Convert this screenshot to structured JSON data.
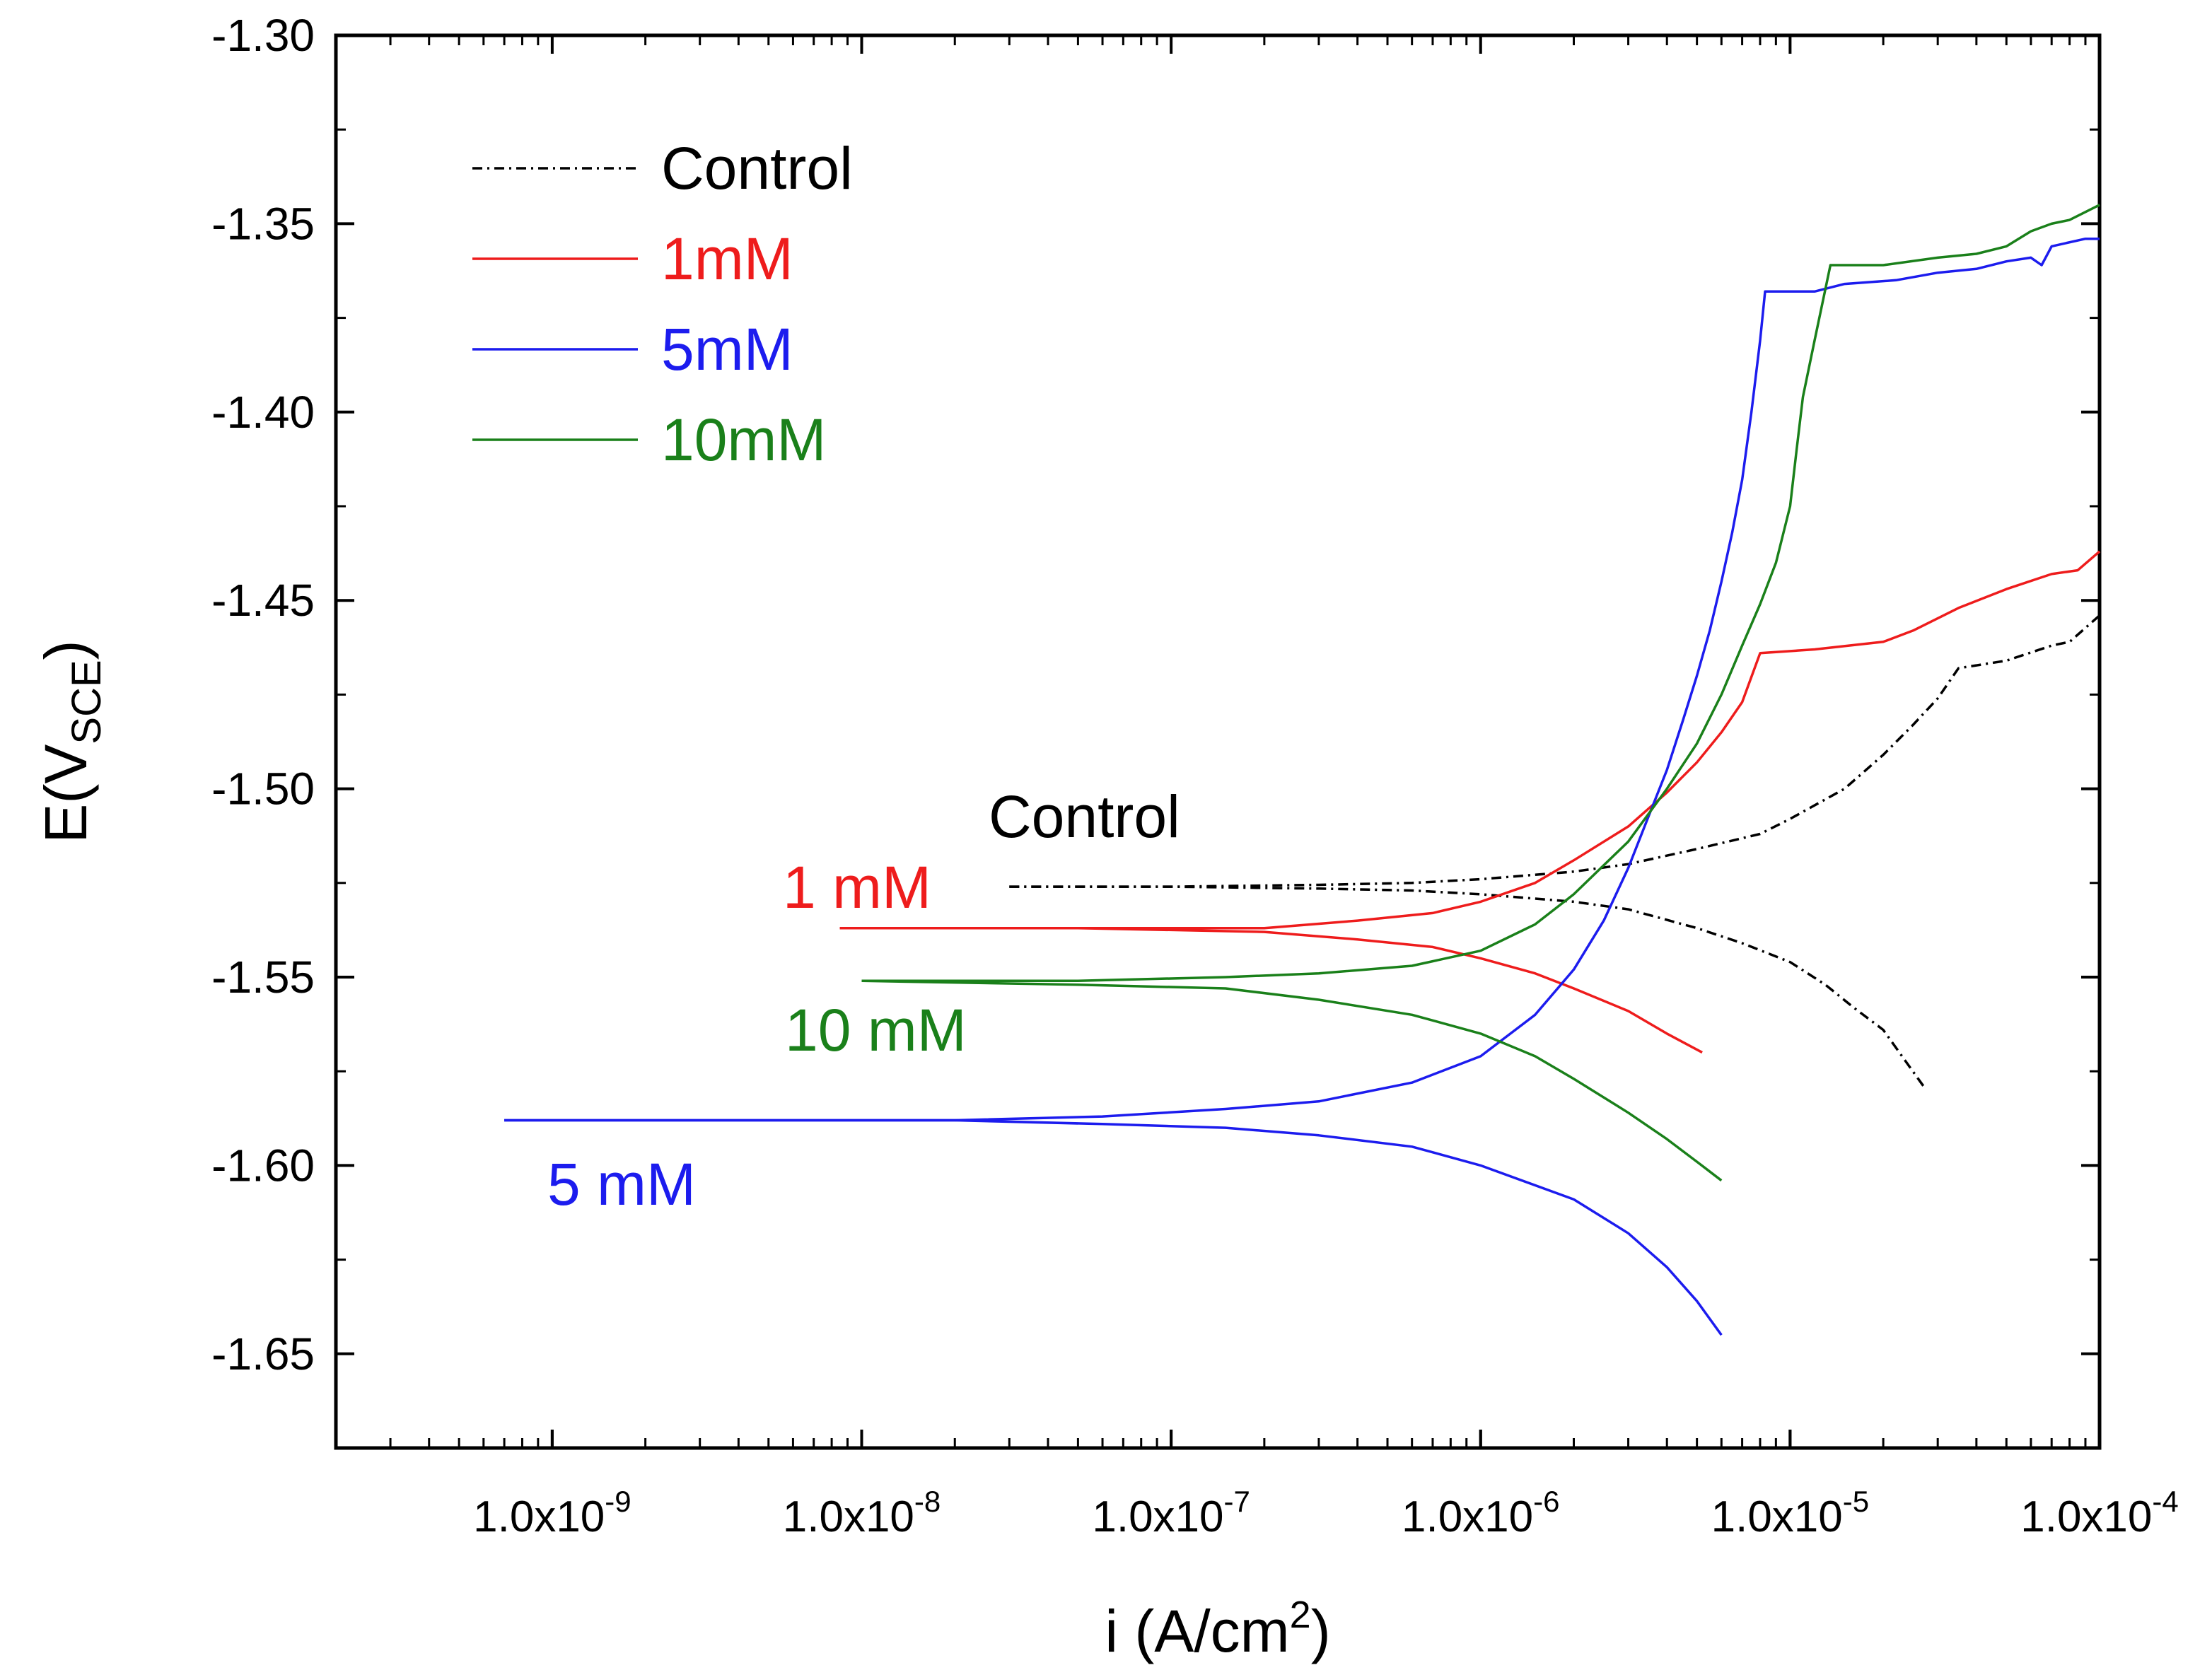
{
  "chart_data": {
    "type": "line",
    "title": "",
    "xlabel": {
      "main": "i (A/cm",
      "sup": "2",
      "close": ")"
    },
    "ylabel": {
      "main": "E(V",
      "sub": "SCE",
      "close": ")"
    },
    "xscale": "log",
    "xlim": [
      2e-10,
      0.0001
    ],
    "ylim": [
      -1.675,
      -1.3
    ],
    "x_tick_labels": [
      {
        "value": 1e-09,
        "base": "1.0x10",
        "exp": "-9"
      },
      {
        "value": 1e-08,
        "base": "1.0x10",
        "exp": "-8"
      },
      {
        "value": 1e-07,
        "base": "1.0x10",
        "exp": "-7"
      },
      {
        "value": 1e-06,
        "base": "1.0x10",
        "exp": "-6"
      },
      {
        "value": 1e-05,
        "base": "1.0x10",
        "exp": "-5"
      },
      {
        "value": 0.0001,
        "base": "1.0x10",
        "exp": "-4"
      }
    ],
    "y_ticks": [
      -1.3,
      -1.35,
      -1.4,
      -1.45,
      -1.5,
      -1.55,
      -1.6,
      -1.65
    ],
    "y_tick_labels": [
      "-1.30",
      "-1.35",
      "-1.40",
      "-1.45",
      "-1.50",
      "-1.55",
      "-1.60",
      "-1.65"
    ],
    "grid": false,
    "legend_position": "top-left",
    "series": [
      {
        "name": "Control",
        "color": "#000000",
        "style": "dash-dot",
        "annotation": "Control",
        "anodic": [
          [
            3e-08,
            -1.526
          ],
          [
            1e-07,
            -1.526
          ],
          [
            3e-07,
            -1.5255
          ],
          [
            6e-07,
            -1.525
          ],
          [
            1e-06,
            -1.524
          ],
          [
            2e-06,
            -1.522
          ],
          [
            3e-06,
            -1.52
          ],
          [
            5e-06,
            -1.516
          ],
          [
            8e-06,
            -1.512
          ],
          [
            1e-05,
            -1.508
          ],
          [
            1.5e-05,
            -1.5
          ],
          [
            2e-05,
            -1.491
          ],
          [
            2.5e-05,
            -1.483
          ],
          [
            3e-05,
            -1.476
          ],
          [
            3.5e-05,
            -1.468
          ],
          [
            5e-05,
            -1.466
          ],
          [
            7e-05,
            -1.462
          ],
          [
            8e-05,
            -1.461
          ],
          [
            0.0001,
            -1.454
          ]
        ],
        "cathodic": [
          [
            3e-08,
            -1.526
          ],
          [
            1e-07,
            -1.526
          ],
          [
            3e-07,
            -1.5265
          ],
          [
            6e-07,
            -1.527
          ],
          [
            1e-06,
            -1.528
          ],
          [
            2e-06,
            -1.53
          ],
          [
            3e-06,
            -1.532
          ],
          [
            5e-06,
            -1.537
          ],
          [
            7e-06,
            -1.541
          ],
          [
            1e-05,
            -1.546
          ],
          [
            1.3e-05,
            -1.552
          ],
          [
            1.6e-05,
            -1.558
          ],
          [
            2e-05,
            -1.564
          ],
          [
            2.3e-05,
            -1.571
          ],
          [
            2.7e-05,
            -1.579
          ]
        ]
      },
      {
        "name": "1mM",
        "color": "#ee1c1c",
        "style": "solid",
        "annotation": "1 mM",
        "anodic": [
          [
            8.5e-09,
            -1.537
          ],
          [
            5e-08,
            -1.537
          ],
          [
            2e-07,
            -1.537
          ],
          [
            4e-07,
            -1.535
          ],
          [
            7e-07,
            -1.533
          ],
          [
            1e-06,
            -1.53
          ],
          [
            1.5e-06,
            -1.525
          ],
          [
            2e-06,
            -1.519
          ],
          [
            3e-06,
            -1.51
          ],
          [
            4e-06,
            -1.501
          ],
          [
            5e-06,
            -1.493
          ],
          [
            6e-06,
            -1.485
          ],
          [
            7e-06,
            -1.477
          ],
          [
            8e-06,
            -1.464
          ],
          [
            1.2e-05,
            -1.463
          ],
          [
            2e-05,
            -1.461
          ],
          [
            2.5e-05,
            -1.458
          ],
          [
            3.5e-05,
            -1.452
          ],
          [
            5e-05,
            -1.447
          ],
          [
            7e-05,
            -1.443
          ],
          [
            8.5e-05,
            -1.442
          ],
          [
            0.0001,
            -1.437
          ]
        ],
        "cathodic": [
          [
            8.5e-09,
            -1.537
          ],
          [
            5e-08,
            -1.537
          ],
          [
            2e-07,
            -1.538
          ],
          [
            4e-07,
            -1.54
          ],
          [
            7e-07,
            -1.542
          ],
          [
            1e-06,
            -1.545
          ],
          [
            1.5e-06,
            -1.549
          ],
          [
            2e-06,
            -1.553
          ],
          [
            3e-06,
            -1.559
          ],
          [
            4e-06,
            -1.565
          ],
          [
            5.2e-06,
            -1.57
          ]
        ]
      },
      {
        "name": "5mM",
        "color": "#1c1cee",
        "style": "solid",
        "annotation": "5 mM",
        "anodic": [
          [
            7e-10,
            -1.588
          ],
          [
            2e-08,
            -1.588
          ],
          [
            6e-08,
            -1.587
          ],
          [
            1.5e-07,
            -1.585
          ],
          [
            3e-07,
            -1.583
          ],
          [
            6e-07,
            -1.578
          ],
          [
            1e-06,
            -1.571
          ],
          [
            1.5e-06,
            -1.56
          ],
          [
            2e-06,
            -1.548
          ],
          [
            2.5e-06,
            -1.535
          ],
          [
            3e-06,
            -1.521
          ],
          [
            3.5e-06,
            -1.507
          ],
          [
            4e-06,
            -1.495
          ],
          [
            4.5e-06,
            -1.482
          ],
          [
            5e-06,
            -1.47
          ],
          [
            5.5e-06,
            -1.458
          ],
          [
            6e-06,
            -1.445
          ],
          [
            6.5e-06,
            -1.432
          ],
          [
            7e-06,
            -1.418
          ],
          [
            7.5e-06,
            -1.4
          ],
          [
            8e-06,
            -1.381
          ],
          [
            8.3e-06,
            -1.368
          ],
          [
            1.2e-05,
            -1.368
          ],
          [
            1.5e-05,
            -1.366
          ],
          [
            2.2e-05,
            -1.365
          ],
          [
            3e-05,
            -1.363
          ],
          [
            4e-05,
            -1.362
          ],
          [
            5e-05,
            -1.36
          ],
          [
            6e-05,
            -1.359
          ],
          [
            6.5e-05,
            -1.361
          ],
          [
            7e-05,
            -1.356
          ],
          [
            9e-05,
            -1.354
          ],
          [
            0.0001,
            -1.354
          ]
        ],
        "cathodic": [
          [
            7e-10,
            -1.588
          ],
          [
            2e-08,
            -1.588
          ],
          [
            6e-08,
            -1.589
          ],
          [
            1.5e-07,
            -1.59
          ],
          [
            3e-07,
            -1.592
          ],
          [
            6e-07,
            -1.595
          ],
          [
            1e-06,
            -1.6
          ],
          [
            2e-06,
            -1.609
          ],
          [
            3e-06,
            -1.618
          ],
          [
            4e-06,
            -1.627
          ],
          [
            5e-06,
            -1.636
          ],
          [
            6e-06,
            -1.645
          ]
        ]
      },
      {
        "name": "10mM",
        "color": "#1a801a",
        "style": "solid",
        "annotation": "10 mM",
        "anodic": [
          [
            1e-08,
            -1.551
          ],
          [
            5e-08,
            -1.551
          ],
          [
            1.5e-07,
            -1.55
          ],
          [
            3e-07,
            -1.549
          ],
          [
            6e-07,
            -1.547
          ],
          [
            1e-06,
            -1.543
          ],
          [
            1.5e-06,
            -1.536
          ],
          [
            2e-06,
            -1.528
          ],
          [
            3e-06,
            -1.514
          ],
          [
            4e-06,
            -1.5
          ],
          [
            5e-06,
            -1.488
          ],
          [
            6e-06,
            -1.475
          ],
          [
            7e-06,
            -1.462
          ],
          [
            8e-06,
            -1.451
          ],
          [
            9e-06,
            -1.44
          ],
          [
            1e-05,
            -1.425
          ],
          [
            1.05e-05,
            -1.41
          ],
          [
            1.1e-05,
            -1.396
          ],
          [
            1.2e-05,
            -1.381
          ],
          [
            1.35e-05,
            -1.361
          ],
          [
            2e-05,
            -1.361
          ],
          [
            3e-05,
            -1.359
          ],
          [
            4e-05,
            -1.358
          ],
          [
            5e-05,
            -1.356
          ],
          [
            6e-05,
            -1.352
          ],
          [
            7e-05,
            -1.35
          ],
          [
            8e-05,
            -1.349
          ],
          [
            0.0001,
            -1.345
          ]
        ],
        "cathodic": [
          [
            1e-08,
            -1.551
          ],
          [
            5e-08,
            -1.552
          ],
          [
            1.5e-07,
            -1.553
          ],
          [
            3e-07,
            -1.556
          ],
          [
            6e-07,
            -1.56
          ],
          [
            1e-06,
            -1.565
          ],
          [
            1.5e-06,
            -1.571
          ],
          [
            2e-06,
            -1.577
          ],
          [
            3e-06,
            -1.586
          ],
          [
            4e-06,
            -1.593
          ],
          [
            5e-06,
            -1.599
          ],
          [
            6e-06,
            -1.604
          ]
        ]
      }
    ]
  }
}
